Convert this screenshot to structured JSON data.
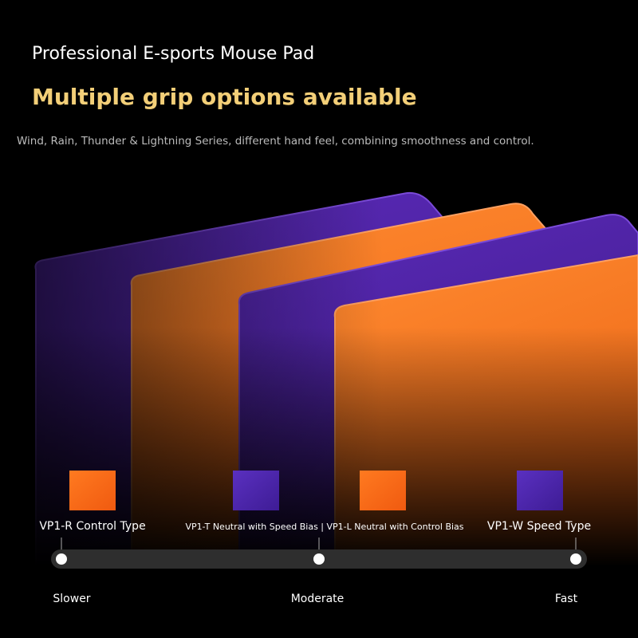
{
  "header": {
    "title": "Professional E-sports Mouse Pad",
    "headline": "Multiple grip options available",
    "subtitle": "Wind, Rain, Thunder & Lightning Series, different hand feel, combining smoothness and control."
  },
  "products": [
    {
      "label": "VP1-R Control Type"
    },
    {
      "label": "VP1-T Neutral with Speed Bias | VP1-L Neutral with Control Bias"
    },
    {
      "label": "VP1-W Speed Type"
    }
  ],
  "scale": {
    "labels": [
      "Slower",
      "Moderate",
      "Fast"
    ]
  }
}
